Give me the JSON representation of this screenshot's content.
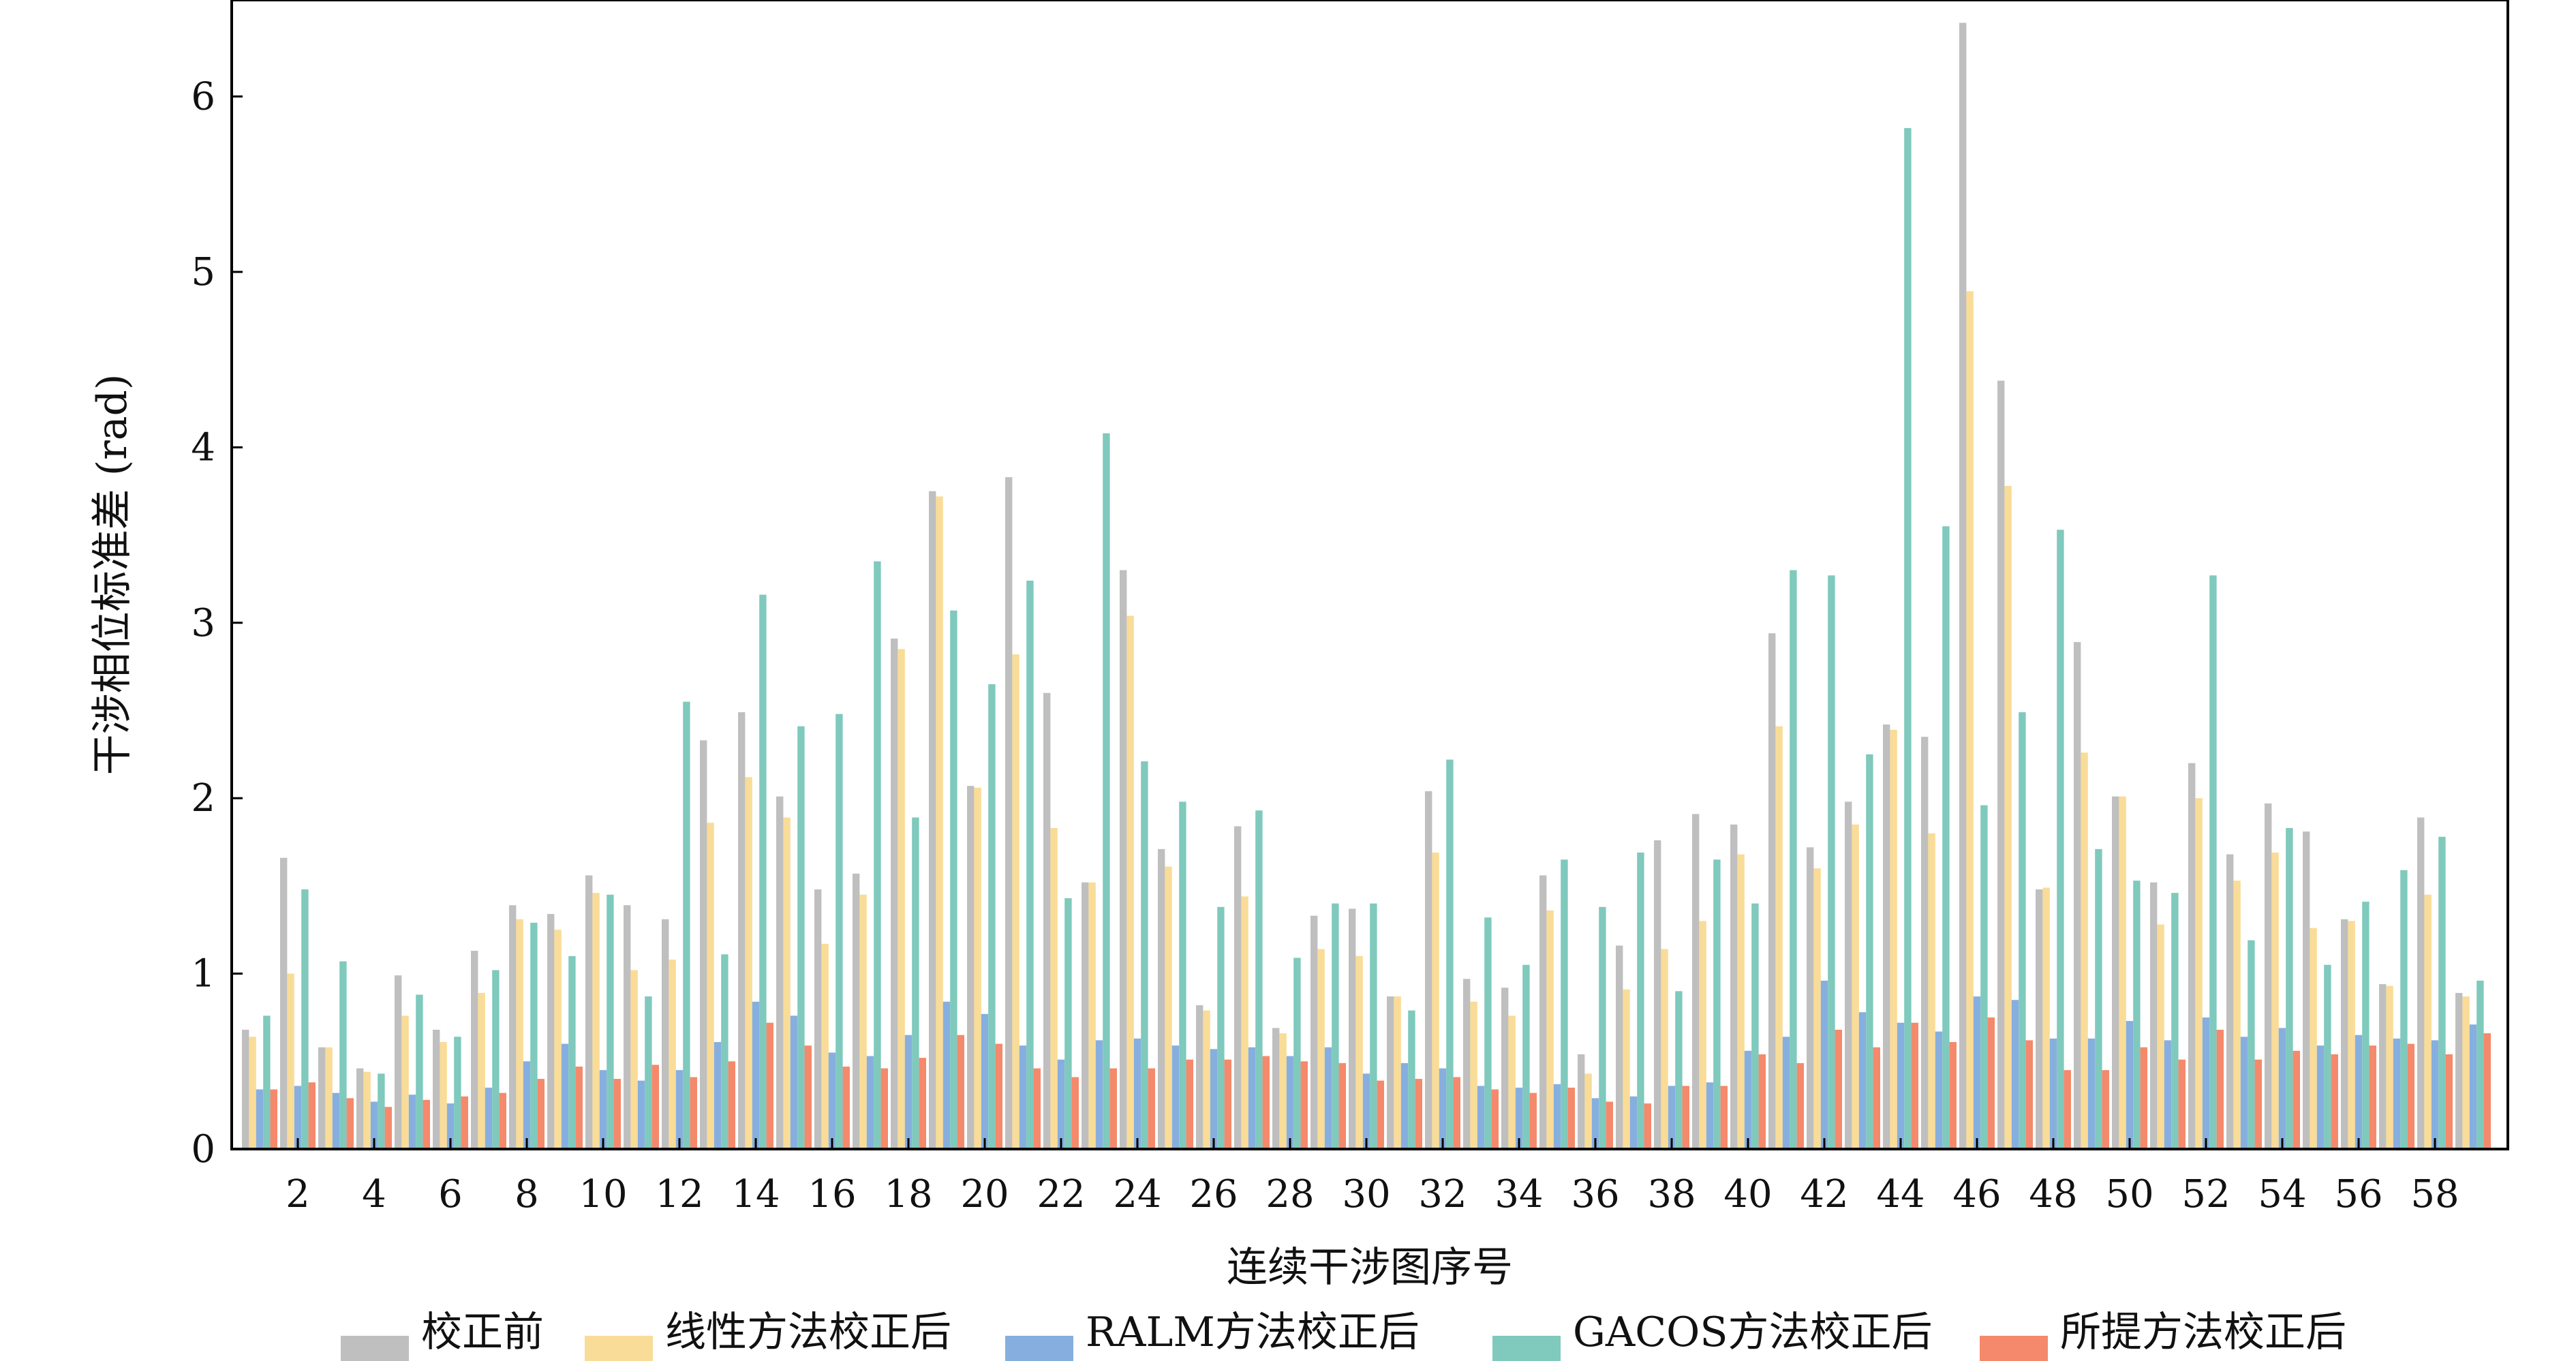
{
  "chart_data": {
    "type": "bar",
    "xlabel": "连续干涉图序号",
    "ylabel": "干涉相位标准差 (rad)",
    "ylim": [
      0,
      6.55
    ],
    "yticks": [
      0,
      1,
      2,
      3,
      4,
      5,
      6
    ],
    "xtick_labels": [
      "2",
      "4",
      "6",
      "8",
      "10",
      "12",
      "14",
      "16",
      "18",
      "20",
      "22",
      "24",
      "26",
      "28",
      "30",
      "32",
      "34",
      "36",
      "38",
      "40",
      "42",
      "44",
      "46",
      "48",
      "50",
      "52",
      "54",
      "56",
      "58"
    ],
    "grid": false,
    "legend_position": "bottom",
    "categories": [
      1,
      2,
      3,
      4,
      5,
      6,
      7,
      8,
      9,
      10,
      11,
      12,
      13,
      14,
      15,
      16,
      17,
      18,
      19,
      20,
      21,
      22,
      23,
      24,
      25,
      26,
      27,
      28,
      29,
      30,
      31,
      32,
      33,
      34,
      35,
      36,
      37,
      38,
      39,
      40,
      41,
      42,
      43,
      44,
      45,
      46,
      47,
      48,
      49,
      50,
      51,
      52,
      53,
      54,
      55,
      56,
      57,
      58,
      59
    ],
    "series": [
      {
        "name": "校正前",
        "color": "#bfbfbf",
        "values": [
          0.68,
          1.66,
          0.58,
          0.46,
          0.99,
          0.68,
          1.13,
          1.39,
          1.34,
          1.56,
          1.39,
          1.31,
          2.33,
          2.49,
          2.01,
          1.48,
          1.57,
          2.91,
          3.75,
          2.07,
          3.83,
          2.6,
          1.52,
          3.3,
          1.71,
          0.82,
          1.84,
          0.69,
          1.33,
          1.37,
          0.87,
          2.04,
          0.97,
          0.92,
          1.56,
          0.54,
          1.16,
          1.76,
          1.91,
          1.85,
          2.94,
          1.72,
          1.98,
          2.42,
          2.35,
          6.42,
          4.38,
          1.48,
          2.89,
          2.01,
          1.52,
          2.2,
          1.68,
          1.97,
          1.81,
          1.31,
          0.94,
          1.89,
          0.89
        ]
      },
      {
        "name": "线性方法校正后",
        "color": "#f9dc98",
        "values": [
          0.64,
          1.0,
          0.58,
          0.44,
          0.76,
          0.61,
          0.89,
          1.31,
          1.25,
          1.46,
          1.02,
          1.08,
          1.86,
          2.12,
          1.89,
          1.17,
          1.45,
          2.85,
          3.72,
          2.06,
          2.82,
          1.83,
          1.52,
          3.04,
          1.61,
          0.79,
          1.44,
          0.66,
          1.14,
          1.1,
          0.87,
          1.69,
          0.84,
          0.76,
          1.36,
          0.43,
          0.91,
          1.14,
          1.3,
          1.68,
          2.41,
          1.6,
          1.85,
          2.39,
          1.8,
          4.89,
          3.78,
          1.49,
          2.26,
          2.01,
          1.28,
          2.0,
          1.53,
          1.69,
          1.26,
          1.3,
          0.93,
          1.45,
          0.87
        ]
      },
      {
        "name": "RALM方法校正后",
        "color": "#86afdf",
        "values": [
          0.34,
          0.36,
          0.32,
          0.27,
          0.31,
          0.26,
          0.35,
          0.5,
          0.6,
          0.45,
          0.39,
          0.45,
          0.61,
          0.84,
          0.76,
          0.55,
          0.53,
          0.65,
          0.84,
          0.77,
          0.59,
          0.51,
          0.62,
          0.63,
          0.59,
          0.57,
          0.58,
          0.53,
          0.58,
          0.43,
          0.49,
          0.46,
          0.36,
          0.35,
          0.37,
          0.29,
          0.3,
          0.36,
          0.38,
          0.56,
          0.64,
          0.96,
          0.78,
          0.72,
          0.67,
          0.87,
          0.85,
          0.63,
          0.63,
          0.73,
          0.62,
          0.75,
          0.64,
          0.69,
          0.59,
          0.65,
          0.63,
          0.62,
          0.71
        ]
      },
      {
        "name": "GACOS方法校正后",
        "color": "#7fc9bd",
        "values": [
          0.76,
          1.48,
          1.07,
          0.43,
          0.88,
          0.64,
          1.02,
          1.29,
          1.1,
          1.45,
          0.87,
          2.55,
          1.11,
          3.16,
          2.41,
          2.48,
          3.35,
          1.89,
          3.07,
          2.65,
          3.24,
          1.43,
          4.08,
          2.21,
          1.98,
          1.38,
          1.93,
          1.09,
          1.4,
          1.4,
          0.79,
          2.22,
          1.32,
          1.05,
          1.65,
          1.38,
          1.69,
          0.9,
          1.65,
          1.4,
          3.3,
          3.27,
          2.25,
          5.82,
          3.55,
          1.96,
          2.49,
          3.53,
          1.71,
          1.53,
          1.46,
          3.27,
          1.19,
          1.83,
          1.05,
          1.41,
          1.59,
          1.78,
          0.96
        ]
      },
      {
        "name": "所提方法校正后",
        "color": "#f5896b",
        "values": [
          0.34,
          0.38,
          0.29,
          0.24,
          0.28,
          0.3,
          0.32,
          0.4,
          0.47,
          0.4,
          0.48,
          0.41,
          0.5,
          0.72,
          0.59,
          0.47,
          0.46,
          0.52,
          0.65,
          0.6,
          0.46,
          0.41,
          0.46,
          0.46,
          0.51,
          0.51,
          0.53,
          0.5,
          0.49,
          0.39,
          0.4,
          0.41,
          0.34,
          0.32,
          0.35,
          0.27,
          0.26,
          0.36,
          0.36,
          0.54,
          0.49,
          0.68,
          0.58,
          0.72,
          0.61,
          0.75,
          0.62,
          0.45,
          0.45,
          0.58,
          0.51,
          0.68,
          0.51,
          0.56,
          0.54,
          0.59,
          0.6,
          0.54,
          0.66
        ]
      }
    ]
  }
}
